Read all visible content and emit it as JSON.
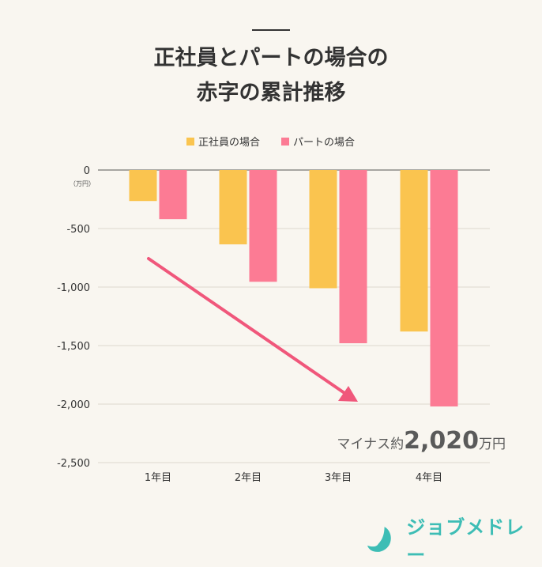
{
  "title_lines": [
    "正社員とパートの場合の",
    "赤字の累計推移"
  ],
  "chart_data": {
    "type": "bar",
    "title": "正社員とパートの場合の赤字の累計推移",
    "categories": [
      "1年目",
      "2年目",
      "3年目",
      "4年目"
    ],
    "series": [
      {
        "name": "正社員の場合",
        "values": [
          -265,
          -635,
          -1010,
          -1380
        ],
        "color": "#fac44f"
      },
      {
        "name": "パートの場合",
        "values": [
          -420,
          -955,
          -1480,
          -2020
        ],
        "color": "#fc7b94"
      }
    ],
    "ylabel": "（万円）",
    "ylim": [
      -2500,
      0
    ],
    "yticks": [
      0,
      -500,
      -1000,
      -1500,
      -2000,
      -2500
    ],
    "ytick_labels": [
      "0",
      "-500",
      "-1,000",
      "-1,500",
      "-2,000",
      "-2,500"
    ],
    "grid": true,
    "legend": "top",
    "annotation": {
      "prefix": "マイナス約",
      "value": "2,020",
      "unit": "万円"
    },
    "arrow_color": "#f0577b"
  },
  "brand": {
    "name": "ジョブメドレー",
    "color": "#3dbdb5"
  }
}
